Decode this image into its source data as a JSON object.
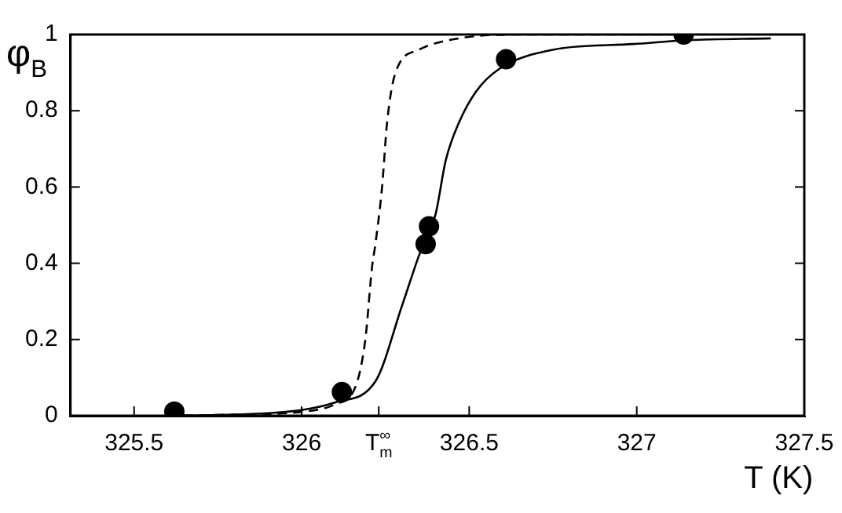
{
  "chart_data": {
    "type": "line",
    "xlabel": "T (K)",
    "ylabel": "φ$_{B}$",
    "xlim": [
      325.31,
      327.5
    ],
    "ylim": [
      0,
      1
    ],
    "xticks": [
      325.5,
      326,
      {
        "value": 326.23,
        "label": "T$_{m}$$^{∞}$"
      },
      326.5,
      327,
      327.5
    ],
    "yticks": [
      0,
      0.2,
      0.4,
      0.6,
      0.8,
      1
    ],
    "grid": false,
    "legend": false,
    "series": [
      {
        "type": "line",
        "color": "#000000",
        "line_style": "solid",
        "marker": "none",
        "x": [
          325.6,
          325.8,
          326.0,
          326.1,
          326.22,
          326.3,
          326.35,
          326.4,
          326.43,
          326.47,
          326.52,
          326.59,
          326.75,
          326.99,
          327.15,
          327.4
        ],
        "values": [
          0,
          0.003,
          0.015,
          0.035,
          0.09,
          0.29,
          0.42,
          0.53,
          0.67,
          0.77,
          0.85,
          0.91,
          0.96,
          0.975,
          0.985,
          0.99
        ]
      },
      {
        "type": "line",
        "color": "#000000",
        "line_style": "dashed",
        "marker": "none",
        "x": [
          325.6,
          325.8,
          326.0,
          326.1,
          326.16,
          326.19,
          326.21,
          326.22,
          326.24,
          326.255,
          326.28,
          326.35,
          326.47,
          326.67,
          327.15
        ],
        "values": [
          0,
          0.003,
          0.01,
          0.03,
          0.075,
          0.2,
          0.39,
          0.45,
          0.6,
          0.77,
          0.9,
          0.96,
          0.99,
          1,
          1
        ]
      },
      {
        "type": "scatter",
        "color": "#000000",
        "marker": "circle",
        "x": [
          325.62,
          326.12,
          326.38,
          326.37,
          326.61,
          327.14
        ],
        "values": [
          0.011,
          0.062,
          0.497,
          0.45,
          0.935,
          1.0
        ]
      }
    ]
  }
}
